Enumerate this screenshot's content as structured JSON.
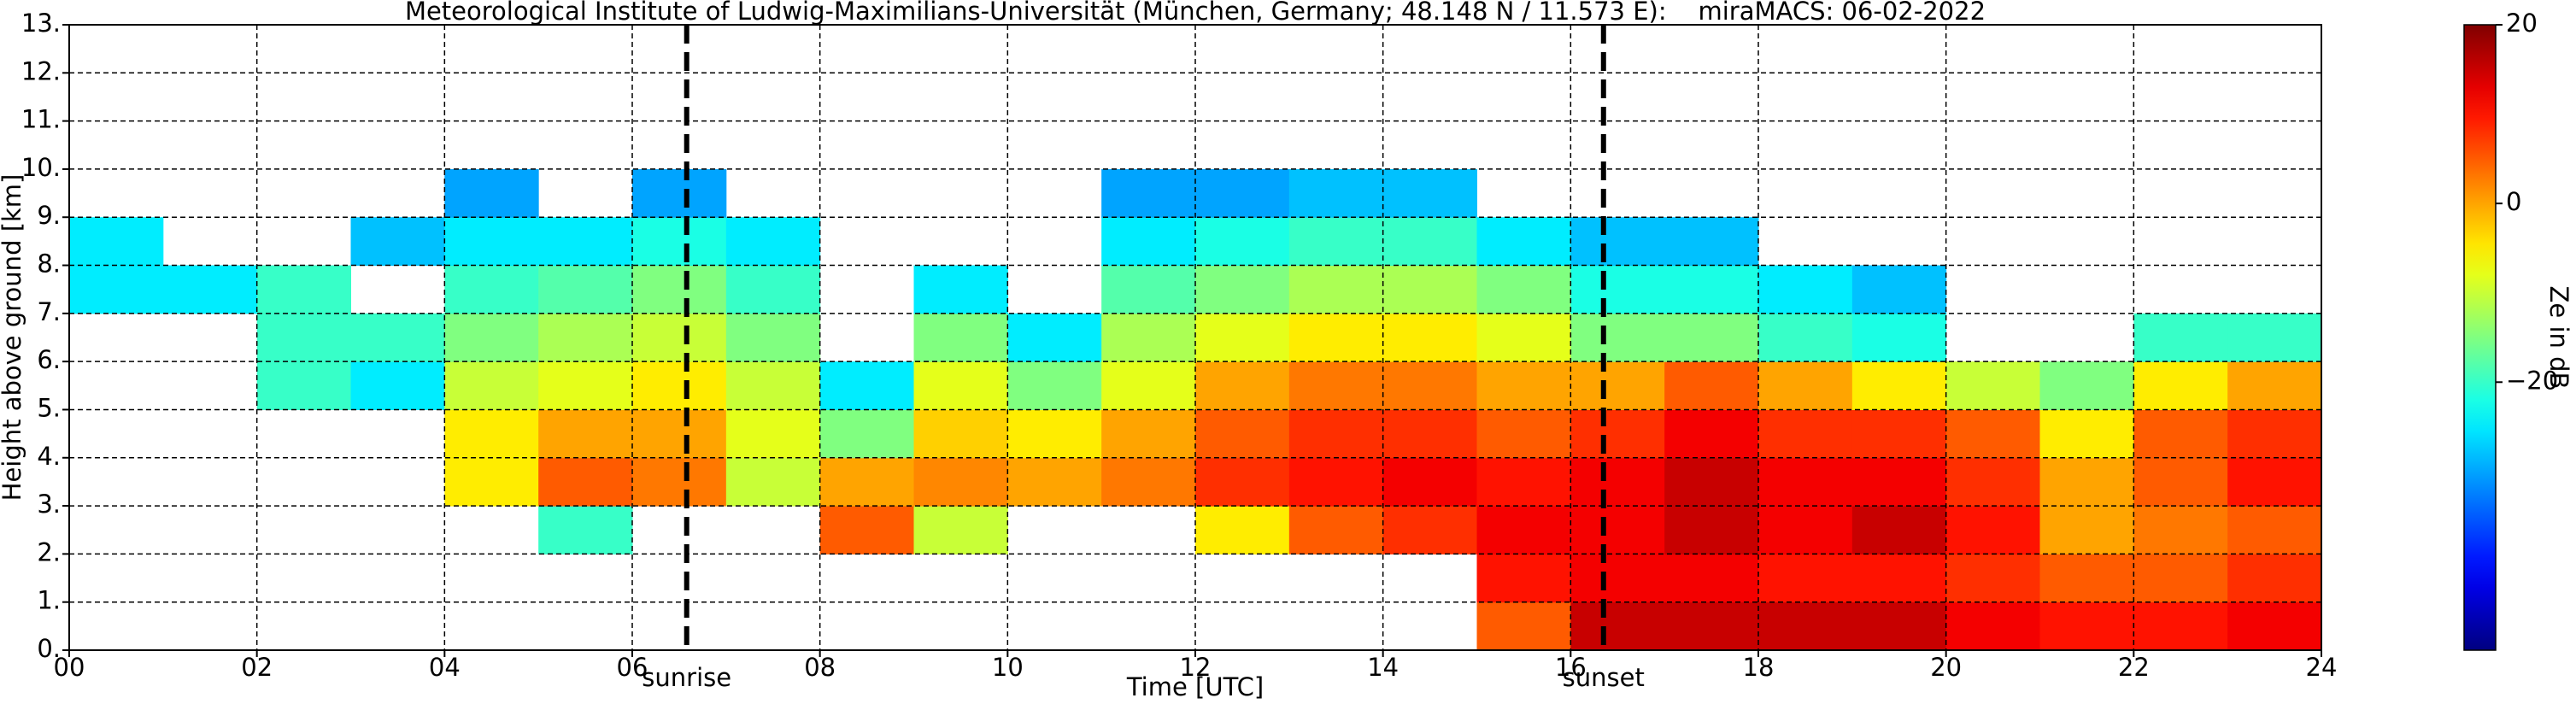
{
  "chart_data": {
    "type": "heatmap",
    "title": "Meteorological Institute of Ludwig-Maximilians-Universität (München, Germany; 48.148 N / 11.573 E):    miraMACS: 06-02-2022",
    "x_label": "Time [UTC]",
    "y_label": "Height above ground [km]",
    "colorbar_label": "Ze in dB",
    "xlim": [
      0,
      24
    ],
    "xticks": [
      {
        "value": 0,
        "label": "00"
      },
      {
        "value": 2,
        "label": "02"
      },
      {
        "value": 4,
        "label": "04"
      },
      {
        "value": 6,
        "label": "06"
      },
      {
        "value": 8,
        "label": "08"
      },
      {
        "value": 10,
        "label": "10"
      },
      {
        "value": 12,
        "label": "12"
      },
      {
        "value": 14,
        "label": "14"
      },
      {
        "value": 16,
        "label": "16"
      },
      {
        "value": 18,
        "label": "18"
      },
      {
        "value": 20,
        "label": "20"
      },
      {
        "value": 22,
        "label": "22"
      },
      {
        "value": 24,
        "label": "24"
      }
    ],
    "ylim": [
      0,
      13
    ],
    "yticks": [
      {
        "value": 0,
        "label": "0."
      },
      {
        "value": 1,
        "label": "1."
      },
      {
        "value": 2,
        "label": "2."
      },
      {
        "value": 3,
        "label": "3."
      },
      {
        "value": 4,
        "label": "4."
      },
      {
        "value": 5,
        "label": "5."
      },
      {
        "value": 6,
        "label": "6."
      },
      {
        "value": 7,
        "label": "7."
      },
      {
        "value": 8,
        "label": "8."
      },
      {
        "value": 9,
        "label": "9."
      },
      {
        "value": 10,
        "label": "10."
      },
      {
        "value": 11,
        "label": "11."
      },
      {
        "value": 12,
        "label": "12."
      },
      {
        "value": 13,
        "label": "13."
      }
    ],
    "clim": [
      -50,
      20
    ],
    "cticks": [
      {
        "value": 20,
        "label": "20"
      },
      {
        "value": 0,
        "label": "0"
      },
      {
        "value": -20,
        "label": "−20"
      }
    ],
    "colormap": "jet",
    "grid": true,
    "annotations": [
      {
        "x": 6.58,
        "text": "sunrise"
      },
      {
        "x": 16.35,
        "text": "sunset"
      }
    ],
    "values": [
      [
        null,
        null,
        null,
        null,
        null,
        null,
        null,
        -25,
        -25,
        null,
        null,
        null,
        null
      ],
      [
        null,
        null,
        null,
        null,
        null,
        null,
        null,
        -25,
        null,
        null,
        null,
        null,
        null
      ],
      [
        null,
        null,
        null,
        null,
        null,
        -20,
        -20,
        -20,
        null,
        null,
        null,
        null,
        null
      ],
      [
        null,
        null,
        null,
        null,
        null,
        -25,
        -20,
        null,
        -28,
        null,
        null,
        null,
        null
      ],
      [
        null,
        null,
        null,
        -5,
        -5,
        -10,
        -15,
        -20,
        -25,
        -30,
        null,
        null,
        null
      ],
      [
        null,
        null,
        -20,
        5,
        0,
        -8,
        -12,
        -18,
        -25,
        null,
        null,
        null,
        null
      ],
      [
        null,
        null,
        null,
        3,
        0,
        -5,
        -10,
        -15,
        -22,
        -30,
        null,
        null,
        null
      ],
      [
        null,
        null,
        null,
        -10,
        -8,
        -10,
        -15,
        -20,
        -25,
        null,
        null,
        null,
        null
      ],
      [
        null,
        null,
        5,
        0,
        -15,
        -25,
        null,
        null,
        null,
        null,
        null,
        null,
        null
      ],
      [
        null,
        null,
        -10,
        2,
        -3,
        -8,
        -15,
        -25,
        null,
        null,
        null,
        null,
        null
      ],
      [
        null,
        null,
        null,
        0,
        -5,
        -15,
        -25,
        null,
        null,
        null,
        null,
        null,
        null
      ],
      [
        null,
        null,
        null,
        3,
        0,
        -8,
        -12,
        -18,
        -25,
        -30,
        null,
        null,
        null
      ],
      [
        null,
        null,
        -5,
        8,
        5,
        0,
        -8,
        -15,
        -22,
        -30,
        null,
        null,
        null
      ],
      [
        null,
        null,
        5,
        10,
        8,
        3,
        -5,
        -12,
        -20,
        -28,
        null,
        null,
        null
      ],
      [
        null,
        null,
        8,
        12,
        8,
        3,
        -5,
        -12,
        -20,
        -28,
        null,
        null,
        null
      ],
      [
        5,
        10,
        12,
        10,
        5,
        0,
        -8,
        -15,
        -25,
        null,
        null,
        null,
        null
      ],
      [
        15,
        12,
        12,
        12,
        8,
        0,
        -15,
        -22,
        -28,
        null,
        null,
        null,
        null
      ],
      [
        15,
        12,
        15,
        15,
        12,
        5,
        -15,
        -22,
        -28,
        null,
        null,
        null,
        null
      ],
      [
        15,
        10,
        12,
        12,
        8,
        0,
        -20,
        -25,
        null,
        null,
        null,
        null,
        null
      ],
      [
        15,
        10,
        15,
        12,
        8,
        -5,
        -22,
        -28,
        null,
        null,
        null,
        null,
        null
      ],
      [
        12,
        8,
        10,
        8,
        5,
        -10,
        null,
        null,
        null,
        null,
        null,
        null,
        null
      ],
      [
        10,
        5,
        0,
        0,
        -5,
        -15,
        null,
        null,
        null,
        null,
        null,
        null,
        null
      ],
      [
        10,
        5,
        3,
        5,
        5,
        -5,
        -20,
        null,
        null,
        null,
        null,
        null,
        null
      ],
      [
        12,
        8,
        5,
        10,
        8,
        0,
        -20,
        null,
        null,
        null,
        null,
        null,
        null
      ]
    ]
  }
}
